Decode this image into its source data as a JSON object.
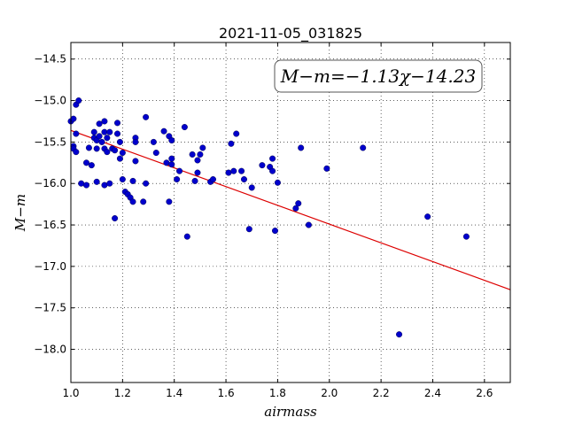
{
  "chart_data": {
    "type": "scatter",
    "title": "2021-11-05_031825",
    "xlabel": "airmass",
    "ylabel": "M−m",
    "xlim": [
      1.0,
      2.7
    ],
    "ylim": [
      -18.4,
      -14.3
    ],
    "x_ticks": [
      1.0,
      1.2,
      1.4,
      1.6,
      1.8,
      2.0,
      2.2,
      2.4,
      2.6
    ],
    "x_tick_labels": [
      "1.0",
      "1.2",
      "1.4",
      "1.6",
      "1.8",
      "2.0",
      "2.2",
      "2.4",
      "2.6"
    ],
    "y_ticks": [
      -14.5,
      -15.0,
      -15.5,
      -16.0,
      -16.5,
      -17.0,
      -17.5,
      -18.0
    ],
    "y_tick_labels": [
      "−14.5",
      "−15.0",
      "−15.5",
      "−16.0",
      "−16.5",
      "−17.0",
      "−17.5",
      "−18.0"
    ],
    "grid": true,
    "annotation": "M−m=−1.13χ−14.23",
    "fit_line": {
      "slope": -1.13,
      "intercept": -14.23,
      "color": "#dd0000"
    },
    "point_color": "#0000cc",
    "points": [
      [
        1.0,
        -15.25
      ],
      [
        1.01,
        -15.22
      ],
      [
        1.01,
        -15.55
      ],
      [
        1.01,
        -15.58
      ],
      [
        1.02,
        -15.4
      ],
      [
        1.02,
        -15.05
      ],
      [
        1.03,
        -15.0
      ],
      [
        1.02,
        -15.62
      ],
      [
        1.04,
        -16.0
      ],
      [
        1.06,
        -16.02
      ],
      [
        1.06,
        -15.75
      ],
      [
        1.07,
        -15.57
      ],
      [
        1.08,
        -15.78
      ],
      [
        1.09,
        -15.45
      ],
      [
        1.09,
        -15.38
      ],
      [
        1.1,
        -15.58
      ],
      [
        1.1,
        -15.48
      ],
      [
        1.11,
        -15.43
      ],
      [
        1.11,
        -15.28
      ],
      [
        1.12,
        -15.5
      ],
      [
        1.13,
        -15.38
      ],
      [
        1.13,
        -15.25
      ],
      [
        1.13,
        -15.58
      ],
      [
        1.14,
        -15.45
      ],
      [
        1.14,
        -15.62
      ],
      [
        1.15,
        -15.38
      ],
      [
        1.1,
        -15.98
      ],
      [
        1.13,
        -16.02
      ],
      [
        1.15,
        -16.0
      ],
      [
        1.16,
        -15.58
      ],
      [
        1.17,
        -15.6
      ],
      [
        1.18,
        -15.27
      ],
      [
        1.18,
        -15.4
      ],
      [
        1.19,
        -15.5
      ],
      [
        1.19,
        -15.7
      ],
      [
        1.2,
        -15.63
      ],
      [
        1.2,
        -15.95
      ],
      [
        1.17,
        -16.42
      ],
      [
        1.21,
        -16.1
      ],
      [
        1.22,
        -16.13
      ],
      [
        1.23,
        -16.17
      ],
      [
        1.24,
        -16.22
      ],
      [
        1.24,
        -15.97
      ],
      [
        1.25,
        -15.45
      ],
      [
        1.25,
        -15.5
      ],
      [
        1.25,
        -15.73
      ],
      [
        1.28,
        -16.22
      ],
      [
        1.29,
        -16.0
      ],
      [
        1.29,
        -15.2
      ],
      [
        1.32,
        -15.5
      ],
      [
        1.33,
        -15.63
      ],
      [
        1.36,
        -15.37
      ],
      [
        1.37,
        -15.75
      ],
      [
        1.38,
        -15.43
      ],
      [
        1.38,
        -16.22
      ],
      [
        1.39,
        -15.77
      ],
      [
        1.39,
        -15.48
      ],
      [
        1.39,
        -15.7
      ],
      [
        1.41,
        -15.95
      ],
      [
        1.42,
        -15.85
      ],
      [
        1.44,
        -15.32
      ],
      [
        1.45,
        -16.64
      ],
      [
        1.47,
        -15.65
      ],
      [
        1.48,
        -15.97
      ],
      [
        1.49,
        -15.87
      ],
      [
        1.49,
        -15.72
      ],
      [
        1.5,
        -15.65
      ],
      [
        1.51,
        -15.57
      ],
      [
        1.54,
        -15.98
      ],
      [
        1.55,
        -15.95
      ],
      [
        1.61,
        -15.87
      ],
      [
        1.62,
        -15.52
      ],
      [
        1.63,
        -15.85
      ],
      [
        1.64,
        -15.4
      ],
      [
        1.66,
        -15.85
      ],
      [
        1.67,
        -15.95
      ],
      [
        1.69,
        -16.55
      ],
      [
        1.7,
        -16.05
      ],
      [
        1.74,
        -15.78
      ],
      [
        1.77,
        -15.8
      ],
      [
        1.78,
        -15.85
      ],
      [
        1.78,
        -15.7
      ],
      [
        1.79,
        -16.57
      ],
      [
        1.8,
        -15.99
      ],
      [
        1.87,
        -16.3
      ],
      [
        1.88,
        -16.24
      ],
      [
        1.89,
        -15.57
      ],
      [
        1.92,
        -16.5
      ],
      [
        1.99,
        -15.82
      ],
      [
        2.13,
        -15.57
      ],
      [
        2.27,
        -17.82
      ],
      [
        2.38,
        -16.4
      ],
      [
        2.53,
        -16.64
      ]
    ]
  }
}
